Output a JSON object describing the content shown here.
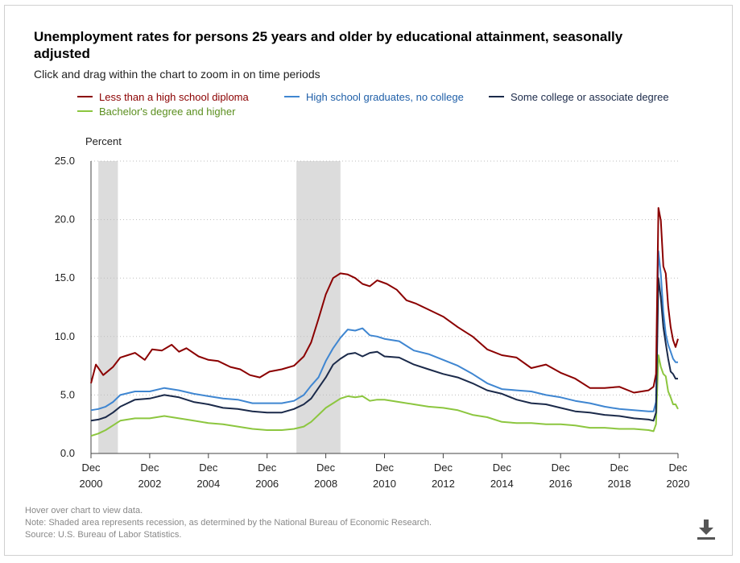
{
  "header": {
    "title": "Unemployment rates for persons 25 years and older by educational attainment, seasonally adjusted",
    "subtitle": "Click and drag within the chart to zoom in on time periods"
  },
  "footer": {
    "hover_note": "Hover over chart to view data.",
    "recession_note": "Note: Shaded area represents recession, as determined by the National Bureau of Economic Research.",
    "source": "Source: U.S. Bureau of Labor Statistics."
  },
  "icons": {
    "download": "download-icon"
  },
  "colors": {
    "less_than_hs": "#8b0000",
    "hs_grad": "#3f86d1",
    "some_college": "#1b2a4a",
    "bachelors": "#8cc63f",
    "recession": "#dcdcdc"
  },
  "chart_data": {
    "type": "line",
    "title": "Unemployment rates for persons 25 years and older by educational attainment, seasonally adjusted",
    "xlabel": "",
    "ylabel": "Percent",
    "ylim": [
      0,
      25
    ],
    "xlim": [
      "2000-12",
      "2020-12"
    ],
    "yticks": [
      "0.0",
      "5.0",
      "10.0",
      "15.0",
      "20.0",
      "25.0"
    ],
    "xticks": [
      {
        "month": "Dec",
        "year": "2000"
      },
      {
        "month": "Dec",
        "year": "2002"
      },
      {
        "month": "Dec",
        "year": "2004"
      },
      {
        "month": "Dec",
        "year": "2006"
      },
      {
        "month": "Dec",
        "year": "2008"
      },
      {
        "month": "Dec",
        "year": "2010"
      },
      {
        "month": "Dec",
        "year": "2012"
      },
      {
        "month": "Dec",
        "year": "2014"
      },
      {
        "month": "Dec",
        "year": "2016"
      },
      {
        "month": "Dec",
        "year": "2018"
      },
      {
        "month": "Dec",
        "year": "2020"
      }
    ],
    "grid": true,
    "legend_position": "top",
    "recessions": [
      {
        "start": "2001-03",
        "end": "2001-11"
      },
      {
        "start": "2007-12",
        "end": "2009-06"
      }
    ],
    "series": [
      {
        "name": "Less than a high school diploma",
        "color": "#8b0000",
        "points": [
          [
            "2000-12",
            6.0
          ],
          [
            "2001-02",
            7.6
          ],
          [
            "2001-05",
            6.7
          ],
          [
            "2001-09",
            7.4
          ],
          [
            "2001-12",
            8.2
          ],
          [
            "2002-03",
            8.4
          ],
          [
            "2002-06",
            8.6
          ],
          [
            "2002-10",
            8.0
          ],
          [
            "2003-01",
            8.9
          ],
          [
            "2003-05",
            8.8
          ],
          [
            "2003-09",
            9.3
          ],
          [
            "2003-12",
            8.7
          ],
          [
            "2004-03",
            9.0
          ],
          [
            "2004-08",
            8.3
          ],
          [
            "2004-12",
            8.0
          ],
          [
            "2005-04",
            7.9
          ],
          [
            "2005-09",
            7.4
          ],
          [
            "2006-01",
            7.2
          ],
          [
            "2006-05",
            6.7
          ],
          [
            "2006-09",
            6.5
          ],
          [
            "2007-01",
            7.0
          ],
          [
            "2007-06",
            7.2
          ],
          [
            "2007-11",
            7.5
          ],
          [
            "2008-03",
            8.3
          ],
          [
            "2008-06",
            9.5
          ],
          [
            "2008-09",
            11.5
          ],
          [
            "2008-12",
            13.6
          ],
          [
            "2009-03",
            15.0
          ],
          [
            "2009-06",
            15.4
          ],
          [
            "2009-09",
            15.3
          ],
          [
            "2009-12",
            15.0
          ],
          [
            "2010-03",
            14.5
          ],
          [
            "2010-06",
            14.3
          ],
          [
            "2010-09",
            14.8
          ],
          [
            "2011-01",
            14.5
          ],
          [
            "2011-05",
            14.0
          ],
          [
            "2011-09",
            13.1
          ],
          [
            "2012-01",
            12.8
          ],
          [
            "2012-06",
            12.3
          ],
          [
            "2012-12",
            11.7
          ],
          [
            "2013-06",
            10.8
          ],
          [
            "2013-12",
            10.0
          ],
          [
            "2014-06",
            8.9
          ],
          [
            "2014-12",
            8.4
          ],
          [
            "2015-06",
            8.2
          ],
          [
            "2015-12",
            7.3
          ],
          [
            "2016-06",
            7.6
          ],
          [
            "2016-12",
            6.9
          ],
          [
            "2017-06",
            6.4
          ],
          [
            "2017-12",
            5.6
          ],
          [
            "2018-06",
            5.6
          ],
          [
            "2018-12",
            5.7
          ],
          [
            "2019-06",
            5.2
          ],
          [
            "2019-12",
            5.4
          ],
          [
            "2020-02",
            5.7
          ],
          [
            "2020-03",
            6.8
          ],
          [
            "2020-04",
            21.0
          ],
          [
            "2020-05",
            19.9
          ],
          [
            "2020-06",
            16.0
          ],
          [
            "2020-07",
            15.4
          ],
          [
            "2020-08",
            12.6
          ],
          [
            "2020-09",
            10.8
          ],
          [
            "2020-10",
            9.7
          ],
          [
            "2020-11",
            9.1
          ],
          [
            "2020-12",
            9.8
          ]
        ]
      },
      {
        "name": "High school graduates, no college",
        "color": "#3f86d1",
        "points": [
          [
            "2000-12",
            3.7
          ],
          [
            "2001-03",
            3.8
          ],
          [
            "2001-06",
            4.0
          ],
          [
            "2001-09",
            4.4
          ],
          [
            "2001-12",
            5.0
          ],
          [
            "2002-06",
            5.3
          ],
          [
            "2002-12",
            5.3
          ],
          [
            "2003-06",
            5.6
          ],
          [
            "2003-12",
            5.4
          ],
          [
            "2004-06",
            5.1
          ],
          [
            "2004-12",
            4.9
          ],
          [
            "2005-06",
            4.7
          ],
          [
            "2005-12",
            4.6
          ],
          [
            "2006-06",
            4.3
          ],
          [
            "2006-12",
            4.3
          ],
          [
            "2007-06",
            4.3
          ],
          [
            "2007-11",
            4.5
          ],
          [
            "2008-03",
            5.0
          ],
          [
            "2008-06",
            5.8
          ],
          [
            "2008-09",
            6.5
          ],
          [
            "2008-12",
            7.9
          ],
          [
            "2009-03",
            9.0
          ],
          [
            "2009-06",
            9.9
          ],
          [
            "2009-09",
            10.6
          ],
          [
            "2009-12",
            10.5
          ],
          [
            "2010-03",
            10.7
          ],
          [
            "2010-06",
            10.1
          ],
          [
            "2010-09",
            10.0
          ],
          [
            "2010-12",
            9.8
          ],
          [
            "2011-06",
            9.6
          ],
          [
            "2011-12",
            8.8
          ],
          [
            "2012-06",
            8.5
          ],
          [
            "2012-12",
            8.0
          ],
          [
            "2013-06",
            7.5
          ],
          [
            "2013-12",
            6.8
          ],
          [
            "2014-06",
            6.0
          ],
          [
            "2014-12",
            5.5
          ],
          [
            "2015-06",
            5.4
          ],
          [
            "2015-12",
            5.3
          ],
          [
            "2016-06",
            5.0
          ],
          [
            "2016-12",
            4.8
          ],
          [
            "2017-06",
            4.5
          ],
          [
            "2017-12",
            4.3
          ],
          [
            "2018-06",
            4.0
          ],
          [
            "2018-12",
            3.8
          ],
          [
            "2019-06",
            3.7
          ],
          [
            "2019-12",
            3.6
          ],
          [
            "2020-02",
            3.6
          ],
          [
            "2020-03",
            4.4
          ],
          [
            "2020-04",
            17.3
          ],
          [
            "2020-05",
            15.3
          ],
          [
            "2020-06",
            12.1
          ],
          [
            "2020-07",
            10.2
          ],
          [
            "2020-08",
            9.3
          ],
          [
            "2020-09",
            8.7
          ],
          [
            "2020-10",
            8.1
          ],
          [
            "2020-11",
            7.8
          ],
          [
            "2020-12",
            7.8
          ]
        ]
      },
      {
        "name": "Some college or associate degree",
        "color": "#1b2a4a",
        "points": [
          [
            "2000-12",
            2.8
          ],
          [
            "2001-03",
            2.9
          ],
          [
            "2001-06",
            3.1
          ],
          [
            "2001-09",
            3.5
          ],
          [
            "2001-12",
            4.0
          ],
          [
            "2002-06",
            4.6
          ],
          [
            "2002-12",
            4.7
          ],
          [
            "2003-06",
            5.0
          ],
          [
            "2003-12",
            4.8
          ],
          [
            "2004-06",
            4.4
          ],
          [
            "2004-12",
            4.2
          ],
          [
            "2005-06",
            3.9
          ],
          [
            "2005-12",
            3.8
          ],
          [
            "2006-06",
            3.6
          ],
          [
            "2006-12",
            3.5
          ],
          [
            "2007-06",
            3.5
          ],
          [
            "2007-11",
            3.8
          ],
          [
            "2008-03",
            4.2
          ],
          [
            "2008-06",
            4.7
          ],
          [
            "2008-09",
            5.6
          ],
          [
            "2008-12",
            6.5
          ],
          [
            "2009-03",
            7.6
          ],
          [
            "2009-06",
            8.1
          ],
          [
            "2009-09",
            8.5
          ],
          [
            "2009-12",
            8.6
          ],
          [
            "2010-03",
            8.3
          ],
          [
            "2010-06",
            8.6
          ],
          [
            "2010-09",
            8.7
          ],
          [
            "2010-12",
            8.3
          ],
          [
            "2011-06",
            8.2
          ],
          [
            "2011-12",
            7.6
          ],
          [
            "2012-06",
            7.2
          ],
          [
            "2012-12",
            6.8
          ],
          [
            "2013-06",
            6.5
          ],
          [
            "2013-12",
            6.0
          ],
          [
            "2014-06",
            5.4
          ],
          [
            "2014-12",
            5.1
          ],
          [
            "2015-06",
            4.6
          ],
          [
            "2015-12",
            4.3
          ],
          [
            "2016-06",
            4.2
          ],
          [
            "2016-12",
            3.9
          ],
          [
            "2017-06",
            3.6
          ],
          [
            "2017-12",
            3.5
          ],
          [
            "2018-06",
            3.3
          ],
          [
            "2018-12",
            3.2
          ],
          [
            "2019-06",
            3.0
          ],
          [
            "2019-12",
            2.9
          ],
          [
            "2020-02",
            2.8
          ],
          [
            "2020-03",
            3.5
          ],
          [
            "2020-04",
            15.0
          ],
          [
            "2020-05",
            13.3
          ],
          [
            "2020-06",
            10.8
          ],
          [
            "2020-07",
            9.4
          ],
          [
            "2020-08",
            8.1
          ],
          [
            "2020-09",
            7.0
          ],
          [
            "2020-10",
            6.8
          ],
          [
            "2020-11",
            6.4
          ],
          [
            "2020-12",
            6.4
          ]
        ]
      },
      {
        "name": "Bachelor's degree and higher",
        "color": "#8cc63f",
        "points": [
          [
            "2000-12",
            1.5
          ],
          [
            "2001-03",
            1.7
          ],
          [
            "2001-06",
            2.0
          ],
          [
            "2001-09",
            2.4
          ],
          [
            "2001-12",
            2.8
          ],
          [
            "2002-06",
            3.0
          ],
          [
            "2002-12",
            3.0
          ],
          [
            "2003-06",
            3.2
          ],
          [
            "2003-12",
            3.0
          ],
          [
            "2004-06",
            2.8
          ],
          [
            "2004-12",
            2.6
          ],
          [
            "2005-06",
            2.5
          ],
          [
            "2005-12",
            2.3
          ],
          [
            "2006-06",
            2.1
          ],
          [
            "2006-12",
            2.0
          ],
          [
            "2007-06",
            2.0
          ],
          [
            "2007-11",
            2.1
          ],
          [
            "2008-03",
            2.3
          ],
          [
            "2008-06",
            2.7
          ],
          [
            "2008-09",
            3.3
          ],
          [
            "2008-12",
            3.9
          ],
          [
            "2009-03",
            4.3
          ],
          [
            "2009-06",
            4.7
          ],
          [
            "2009-09",
            4.9
          ],
          [
            "2009-12",
            4.8
          ],
          [
            "2010-03",
            4.9
          ],
          [
            "2010-06",
            4.5
          ],
          [
            "2010-09",
            4.6
          ],
          [
            "2010-12",
            4.6
          ],
          [
            "2011-06",
            4.4
          ],
          [
            "2011-12",
            4.2
          ],
          [
            "2012-06",
            4.0
          ],
          [
            "2012-12",
            3.9
          ],
          [
            "2013-06",
            3.7
          ],
          [
            "2013-12",
            3.3
          ],
          [
            "2014-06",
            3.1
          ],
          [
            "2014-12",
            2.7
          ],
          [
            "2015-06",
            2.6
          ],
          [
            "2015-12",
            2.6
          ],
          [
            "2016-06",
            2.5
          ],
          [
            "2016-12",
            2.5
          ],
          [
            "2017-06",
            2.4
          ],
          [
            "2017-12",
            2.2
          ],
          [
            "2018-06",
            2.2
          ],
          [
            "2018-12",
            2.1
          ],
          [
            "2019-06",
            2.1
          ],
          [
            "2019-12",
            2.0
          ],
          [
            "2020-02",
            1.9
          ],
          [
            "2020-03",
            2.5
          ],
          [
            "2020-04",
            8.4
          ],
          [
            "2020-05",
            7.4
          ],
          [
            "2020-06",
            6.8
          ],
          [
            "2020-07",
            6.6
          ],
          [
            "2020-08",
            5.3
          ],
          [
            "2020-09",
            4.8
          ],
          [
            "2020-10",
            4.2
          ],
          [
            "2020-11",
            4.2
          ],
          [
            "2020-12",
            3.8
          ]
        ]
      }
    ]
  }
}
